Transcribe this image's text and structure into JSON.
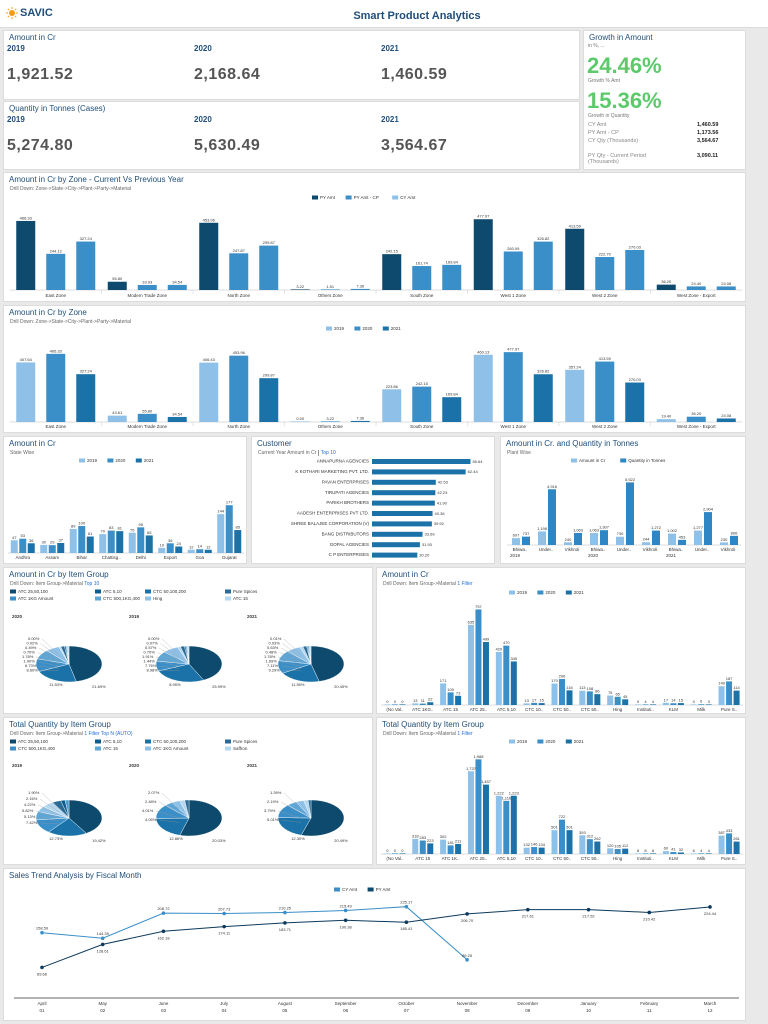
{
  "header": {
    "logo_text": "SAVIC",
    "title": "Smart Product Analytics"
  },
  "amount_cr": {
    "title": "Amount in Cr",
    "years": [
      "2019",
      "2020",
      "2021"
    ],
    "values": [
      "1,921.52",
      "2,168.64",
      "1,460.59"
    ]
  },
  "qty_tonnes": {
    "title": "Quantity in Tonnes (Cases)",
    "years": [
      "2019",
      "2020",
      "2021"
    ],
    "values": [
      "5,274.80",
      "5,630.49",
      "3,564.67"
    ]
  },
  "growth": {
    "title": "Growth in Amount",
    "subtitle": "in %, ...",
    "growth_amt_pct": "24.46%",
    "growth_amt_label": "Growth % Amt",
    "growth_qty_pct": "15.36%",
    "growth_qty_label": "Growth in Quantity",
    "rows": [
      {
        "label": "CY Amt",
        "value": "1,460.59"
      },
      {
        "label": "PY Amt - CP",
        "value": "1,173.56"
      },
      {
        "label": "CY Qty (Thousands)",
        "value": "3,564.67"
      },
      {
        "label": "PY Qty - Current Period (Thousands)",
        "value": "3,090.11"
      }
    ]
  },
  "zone_cy_py": {
    "title": "Amount in Cr by Zone - Current Vs Previous Year",
    "drill": "Drill Down: Zone->State->City->Plant->Party->Material",
    "legend": [
      "PY Amt",
      "PY Amt - CP",
      "CY Amt"
    ]
  },
  "zone_year": {
    "title": "Amount in Cr by Zone",
    "drill": "Drill Down: Zone->State->City->Plant->Party->Material",
    "legend": [
      "2019",
      "2020",
      "2021"
    ]
  },
  "state_wise": {
    "title": "Amount in Cr",
    "sub": "State Wise",
    "legend": [
      "2019",
      "2020",
      "2021"
    ]
  },
  "customer": {
    "title": "Customer",
    "sub": "Current Year Amount in Cr",
    "top": "Top 10"
  },
  "plant_wise": {
    "title": "Amount in Cr. and Quantity in Tonnes",
    "sub": "Plant Wise",
    "legend": [
      "Amount in Cr",
      "Quantity in Tonnes"
    ]
  },
  "item_group_amt": {
    "title": "Amount in Cr by Item Group",
    "drill": "Drill Down: Item Group->Material",
    "top": "Top 10",
    "legend": [
      "ATC 25,50,100",
      "ATC 5,10",
      "CTC 50,100,200",
      "Pure Spices",
      "ATC 1KG Amount",
      "CTC 500,1KG,400",
      "Hing",
      "ATC 15"
    ],
    "years": [
      "2020",
      "2019",
      "2021"
    ]
  },
  "item_amt_bar": {
    "title": "Amount in Cr",
    "drill": "Drill Down: Item Group->Material",
    "filter": "1 Filter",
    "legend": [
      "2019",
      "2020",
      "2021"
    ]
  },
  "item_group_qty": {
    "title": "Total Quantity by Item Group",
    "drill": "Drill Down: Item Group->Material",
    "filter": "1 Filter",
    "top": "Top N (AUTO)",
    "legend": [
      "ATC 25,50,100",
      "ATC 5,10",
      "CTC 50,100,200",
      "Pure Spices",
      "CTC 500,1KG,400",
      "ATC 15",
      "ATC 1KG Amount",
      "Saffron"
    ],
    "years": [
      "2019",
      "2020",
      "2021"
    ]
  },
  "item_qty_bar": {
    "title": "Total Quantity by Item Group",
    "drill": "Drill Down: Item Group->Material",
    "filter": "1 Filter",
    "legend": [
      "2019",
      "2020",
      "2021"
    ]
  },
  "sales_trend": {
    "title": "Sales Trend Analysis by Fiscal Month",
    "legend": [
      "CY Amt",
      "PY Amt"
    ]
  },
  "colors": {
    "dark": "#0d4a6e",
    "mid": "#3a8fc9",
    "light": "#8fc1e8",
    "green": "#5cc96a"
  },
  "chart_data": [
    {
      "type": "bar",
      "name": "zone_cy_py",
      "categories": [
        "East Zone",
        "Modern Trade Zone",
        "North Zone",
        "Others Zone",
        "South Zone",
        "West 1 Zone",
        "West 2 Zone",
        "West Zone - Export"
      ],
      "series": [
        {
          "name": "PY Amt",
          "values": [
            466.33,
            55.8,
            453.96,
            3.22,
            242.15,
            477.97,
            413.59,
            36.2
          ]
        },
        {
          "name": "PY Amt - CP",
          "values": [
            244.12,
            33.93,
            247.87,
            1.51,
            161.74,
            260.09,
            222.7,
            24.4
          ]
        },
        {
          "name": "CY Amt",
          "values": [
            327.24,
            34.54,
            299.87,
            7.36,
            169.84,
            326.82,
            270.03,
            24.08
          ]
        }
      ],
      "ylim": [
        0,
        520
      ]
    },
    {
      "type": "bar",
      "name": "zone_year",
      "categories": [
        "East Zone",
        "Modern Trade Zone",
        "North Zone",
        "Others Zone",
        "South Zone",
        "West 1 Zone",
        "West 2 Zone",
        "West Zone - Export"
      ],
      "series": [
        {
          "name": "2019",
          "values": [
            407.64,
            43.61,
            406.43,
            0.0,
            223.86,
            460.13,
            357.24,
            19.4
          ]
        },
        {
          "name": "2020",
          "values": [
            466.33,
            55.8,
            453.96,
            3.22,
            242.15,
            477.97,
            413.59,
            36.2
          ]
        },
        {
          "name": "2021",
          "values": [
            327.24,
            34.54,
            299.87,
            7.36,
            169.84,
            326.82,
            270.03,
            24.08
          ]
        }
      ],
      "ylim": [
        0,
        520
      ]
    },
    {
      "type": "bar",
      "name": "state_wise",
      "categories": [
        "Andhra",
        "Assam",
        "Bihar",
        "Chattisg..",
        "Delhi",
        "Export",
        "Goa",
        "Gujarat"
      ],
      "series": [
        {
          "name": "2019",
          "values": [
            47,
            30,
            89,
            70,
            75,
            19,
            12,
            144
          ]
        },
        {
          "name": "2020",
          "values": [
            53,
            29,
            100,
            83,
            95,
            36,
            14,
            177
          ]
        },
        {
          "name": "2021",
          "values": [
            36,
            37,
            61,
            81,
            65,
            24,
            12,
            85
          ]
        }
      ],
      "ylim": [
        0,
        200
      ]
    },
    {
      "type": "bar",
      "name": "customer",
      "categories": [
        "ANNAPURNA AGENCIES",
        "K KOTHARI MARKETING PVT. LTD.",
        "PAVAN ENTERPRISES",
        "TIRUPATI AGENCIES",
        "PARIKH BROTHERS",
        "AADESH ENTERPRISES PVT LTD.",
        "SHREE BALAJEE CORPORATION (V)",
        "BANG DISTRIBUTORS",
        "GOPAL AGENCIES",
        "C P ENTERPRISES"
      ],
      "values": [
        65.64,
        62.44,
        42.53,
        42.23,
        41.9,
        40.36,
        39.92,
        33.69,
        31.93,
        30.2
      ]
    },
    {
      "type": "bar",
      "name": "plant_wise",
      "categories": [
        "Bhiwa..",
        "Under..",
        "Vikhroli",
        "Bhiwa..",
        "Under..",
        "Vikhroli",
        "Bhiwa..",
        "Under..",
        "Vikhroli"
      ],
      "groups": [
        "2019",
        "2020",
        "2021"
      ],
      "series": [
        {
          "name": "Amount in Cr",
          "values": [
            607,
            1198,
            240,
            1063,
            730,
            244,
            1002,
            1277,
            230
          ]
        },
        {
          "name": "Quantity in Tonnes",
          "values": [
            737,
            4916,
            1063,
            1307,
            5522,
            1272,
            453,
            2904,
            806
          ]
        }
      ],
      "ylim": [
        0,
        6000
      ]
    },
    {
      "type": "pie",
      "name": "item_group_amt",
      "pies": [
        {
          "year": "2020",
          "labels": [
            "0.00%",
            "0.02%",
            "0.49%",
            "0.70%",
            "1.78%",
            "1.00%",
            "6.73%",
            "8.60%",
            "11.53%",
            "21.69%"
          ]
        },
        {
          "year": "2019",
          "labels": [
            "0.00%",
            "0.07%",
            "0.57%",
            "0.70%",
            "1.91%",
            "1.44%",
            "7.76%",
            "8.98%",
            "8.95%",
            "25.99%"
          ]
        },
        {
          "year": "2021",
          "labels": [
            "0.01%",
            "0.03%",
            "0.63%",
            "0.48%",
            "1.78%",
            "1.69%",
            "7.11%",
            "9.29%",
            "11.55%",
            "20.45%"
          ]
        }
      ]
    },
    {
      "type": "bar",
      "name": "item_amt_bar",
      "categories": [
        "(No Val..",
        "ATC 1KG..",
        "ATC 15",
        "ATC 25..",
        "ATC 5,10",
        "CTC 10..",
        "CTC 50..",
        "CTC 50..",
        "Hing",
        "Instituti..",
        "KLM",
        "Milk",
        "Pure S.."
      ],
      "series": [
        {
          "name": "2019",
          "values": [
            0,
            13,
            171,
            635,
            420,
            13,
            170,
            113,
            75,
            0,
            17,
            0,
            149
          ]
        },
        {
          "name": "2020",
          "values": [
            0,
            11,
            100,
            757,
            470,
            17,
            206,
            108,
            65,
            4,
            14,
            6,
            187
          ]
        },
        {
          "name": "2021",
          "values": [
            0,
            22,
            73,
            499,
            345,
            15,
            116,
            86,
            45,
            4,
            15,
            3,
            114
          ]
        }
      ],
      "ylim": [
        0,
        800
      ]
    },
    {
      "type": "pie",
      "name": "item_group_qty",
      "pies": [
        {
          "year": "2019",
          "labels": [
            "1.90%",
            "2.16%",
            "4.22%",
            "5.82%",
            "5.13%",
            "7.42%",
            "12.73%",
            "19.42%"
          ]
        },
        {
          "year": "2020",
          "labels": [
            "2.07%",
            "2.48%",
            "4.01%",
            "4.05%",
            "12.86%",
            "20.03%"
          ]
        },
        {
          "year": "2021",
          "labels": [
            "1.39%",
            "2.19%",
            "3.79%",
            "5.01%",
            "12.30%",
            "20.49%"
          ]
        }
      ]
    },
    {
      "type": "bar",
      "name": "item_qty_bar",
      "categories": [
        "(No Val..",
        "ATC 15",
        "ATC 1K..",
        "ATC 25..",
        "ATC 5,10",
        "CTC 10..",
        "CTC 50..",
        "CTC 50..",
        "Hing",
        "Instituti..",
        "KLM",
        "Milk",
        "Pure S.."
      ],
      "series": [
        {
          "name": "2019",
          "values": [
            0,
            318,
            302,
            1737,
            1222,
            132,
            501,
            393,
            120,
            8,
            60,
            6,
            387
          ]
        },
        {
          "name": "2020",
          "values": [
            0,
            283,
            181,
            1988,
            1116,
            146,
            722,
            312,
            105,
            8,
            41,
            4,
            433
          ]
        },
        {
          "name": "2021",
          "values": [
            0,
            223,
            211,
            1457,
            1223,
            134,
            501,
            262,
            112,
            8,
            32,
            4,
            261
          ]
        }
      ],
      "ylim": [
        0,
        2100
      ]
    },
    {
      "type": "line",
      "name": "sales_trend",
      "categories": [
        "April",
        "May",
        "June",
        "July",
        "August",
        "September",
        "October",
        "November",
        "December",
        "January",
        "February",
        "March"
      ],
      "sub_categories": [
        "01",
        "02",
        "03",
        "04",
        "05",
        "06",
        "07",
        "08",
        "09",
        "10",
        "11",
        "12"
      ],
      "series": [
        {
          "name": "CY Amt",
          "values": [
            158.59,
            144.39,
            208.72,
            207.73,
            210.25,
            215.49,
            225.17,
            89.25,
            null,
            null,
            null,
            null
          ]
        },
        {
          "name": "PY Amt",
          "values": [
            69.66,
            128.61,
            162.18,
            174.11,
            183.71,
            190.38,
            185.41,
            206.7,
            217.61,
            217.52,
            210.42,
            224.44
          ]
        }
      ],
      "ylim": [
        40,
        250
      ]
    }
  ]
}
